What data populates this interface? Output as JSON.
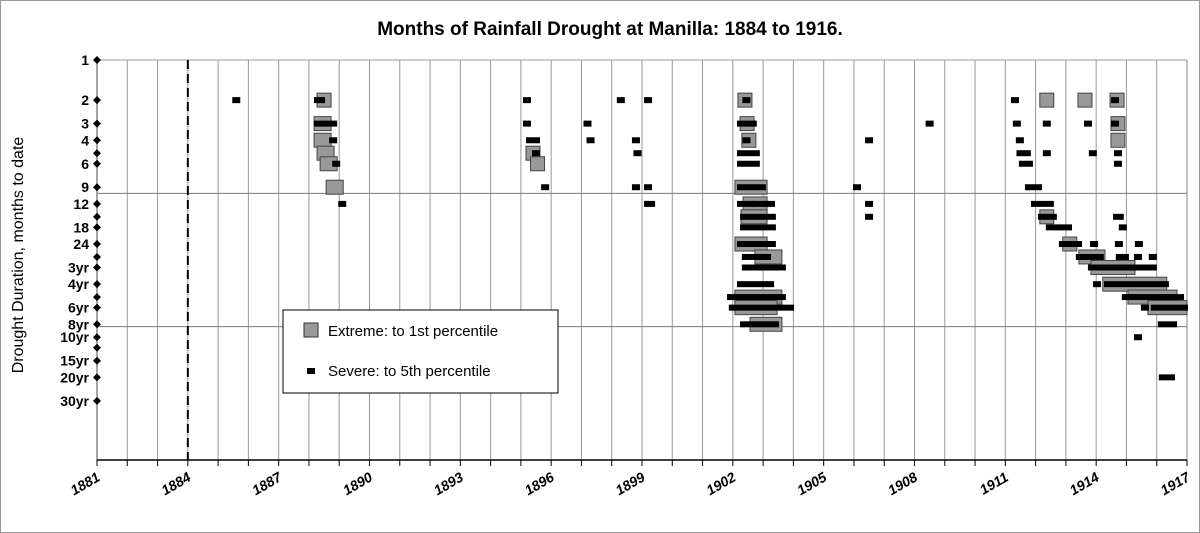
{
  "chart_data": {
    "type": "scatter",
    "title": "Months of Rainfall Drought at Manilla: 1884 to 1916.",
    "ylabel": "Drought Duration, months to date",
    "xlabel": "",
    "xlim": [
      1881,
      1917
    ],
    "ylim": [
      1,
      1000
    ],
    "y_scale": "log",
    "y_reversed": true,
    "grid": {
      "vertical_every_year": true,
      "horizontal_at_months": [
        10,
        100
      ]
    },
    "marker_line_year": 1884,
    "x_ticks": [
      "1881",
      "1884",
      "1887",
      "1890",
      "1893",
      "1896",
      "1899",
      "1902",
      "1905",
      "1908",
      "1911",
      "1914",
      "1917"
    ],
    "y_ticks": [
      {
        "months": 1,
        "label": "1"
      },
      {
        "months": 2,
        "label": "2"
      },
      {
        "months": 3,
        "label": "3"
      },
      {
        "months": 4,
        "label": "4"
      },
      {
        "months": 5,
        "label": ""
      },
      {
        "months": 6,
        "label": "6"
      },
      {
        "months": 9,
        "label": "9"
      },
      {
        "months": 12,
        "label": "12"
      },
      {
        "months": 15,
        "label": ""
      },
      {
        "months": 18,
        "label": "18"
      },
      {
        "months": 24,
        "label": "24"
      },
      {
        "months": 30,
        "label": ""
      },
      {
        "months": 36,
        "label": "3yr"
      },
      {
        "months": 48,
        "label": "4yr"
      },
      {
        "months": 60,
        "label": ""
      },
      {
        "months": 72,
        "label": "6yr"
      },
      {
        "months": 96,
        "label": "8yr"
      },
      {
        "months": 120,
        "label": "10yr"
      },
      {
        "months": 144,
        "label": ""
      },
      {
        "months": 180,
        "label": "15yr"
      },
      {
        "months": 240,
        "label": "20yr"
      },
      {
        "months": 360,
        "label": "30yr"
      }
    ],
    "legend": {
      "placement": "lower-left-center",
      "extreme_label": "Extreme: to 1st percentile",
      "severe_label": "Severe: to 5th percentile"
    },
    "colors": {
      "extreme": "#999999",
      "severe": "#000000"
    },
    "series": [
      {
        "name": "Extreme: to 1st percentile",
        "runs": [
          [
            1888.5,
            1888.5,
            2
          ],
          [
            1888.4,
            1888.5,
            3
          ],
          [
            1888.4,
            1888.5,
            4
          ],
          [
            1888.5,
            1888.6,
            5
          ],
          [
            1888.6,
            1888.7,
            6
          ],
          [
            1888.8,
            1888.9,
            9
          ],
          [
            1895.4,
            1895.4,
            5
          ],
          [
            1895.55,
            1895.55,
            6
          ],
          [
            1902.4,
            1902.4,
            2
          ],
          [
            1902.47,
            1902.47,
            3
          ],
          [
            1902.53,
            1902.53,
            4
          ],
          [
            1902.3,
            1902.9,
            9
          ],
          [
            1902.57,
            1902.9,
            12
          ],
          [
            1902.5,
            1902.9,
            15
          ],
          [
            1902.3,
            1902.9,
            24
          ],
          [
            1902.96,
            1903.39,
            30
          ],
          [
            1902.3,
            1903.39,
            60
          ],
          [
            1902.3,
            1903.23,
            72
          ],
          [
            1902.8,
            1903.39,
            96
          ],
          [
            1912.37,
            1912.37,
            2
          ],
          [
            1913.63,
            1913.63,
            2
          ],
          [
            1914.69,
            1914.69,
            2
          ],
          [
            1914.72,
            1914.72,
            3
          ],
          [
            1914.72,
            1914.72,
            4
          ],
          [
            1912.37,
            1912.37,
            15
          ],
          [
            1913.13,
            1913.13,
            24
          ],
          [
            1913.66,
            1914.06,
            30
          ],
          [
            1914.06,
            1915.05,
            36
          ],
          [
            1914.45,
            1916.1,
            48
          ],
          [
            1915.28,
            1916.44,
            60
          ],
          [
            1915.94,
            1916.77,
            72
          ]
        ]
      },
      {
        "name": "Severe: to 5th percentile",
        "runs": [
          [
            1885.6,
            1885.6,
            2
          ],
          [
            1888.3,
            1888.4,
            2
          ],
          [
            1888.3,
            1888.8,
            3
          ],
          [
            1888.8,
            1888.8,
            4
          ],
          [
            1888.9,
            1888.9,
            6
          ],
          [
            1889.1,
            1889.1,
            12
          ],
          [
            1895.2,
            1895.2,
            2
          ],
          [
            1895.2,
            1895.2,
            3
          ],
          [
            1895.3,
            1895.5,
            4
          ],
          [
            1895.5,
            1895.5,
            5
          ],
          [
            1895.8,
            1895.8,
            9
          ],
          [
            1897.2,
            1897.2,
            3
          ],
          [
            1897.3,
            1897.3,
            4
          ],
          [
            1898.3,
            1898.3,
            2
          ],
          [
            1898.8,
            1898.8,
            4
          ],
          [
            1898.85,
            1898.85,
            5
          ],
          [
            1898.8,
            1898.8,
            9
          ],
          [
            1899.2,
            1899.2,
            2
          ],
          [
            1899.2,
            1899.2,
            9
          ],
          [
            1899.2,
            1899.3,
            12
          ],
          [
            1902.45,
            1902.45,
            2
          ],
          [
            1902.27,
            1902.66,
            3
          ],
          [
            1902.45,
            1902.45,
            4
          ],
          [
            1902.27,
            1902.76,
            5
          ],
          [
            1902.27,
            1902.76,
            6
          ],
          [
            1902.27,
            1902.96,
            9
          ],
          [
            1902.27,
            1902.6,
            12
          ],
          [
            1902.75,
            1902.96,
            12
          ],
          [
            1903.15,
            1903.26,
            12
          ],
          [
            1902.37,
            1903.29,
            15
          ],
          [
            1902.37,
            1903.29,
            18
          ],
          [
            1902.27,
            1903.29,
            24
          ],
          [
            1902.43,
            1903.13,
            30
          ],
          [
            1902.43,
            1903.62,
            36
          ],
          [
            1902.27,
            1903.23,
            48
          ],
          [
            1901.94,
            1903.62,
            60
          ],
          [
            1902.0,
            1903.89,
            72
          ],
          [
            1902.37,
            1903.39,
            96
          ],
          [
            1906.1,
            1906.1,
            9
          ],
          [
            1906.5,
            1906.5,
            4
          ],
          [
            1906.5,
            1906.5,
            12
          ],
          [
            1906.5,
            1906.5,
            15
          ],
          [
            1908.5,
            1908.5,
            3
          ],
          [
            1911.32,
            1911.32,
            2
          ],
          [
            1911.38,
            1911.38,
            3
          ],
          [
            1911.48,
            1911.48,
            4
          ],
          [
            1911.5,
            1911.71,
            5
          ],
          [
            1911.58,
            1911.78,
            6
          ],
          [
            1911.78,
            1912.08,
            9
          ],
          [
            1911.98,
            1912.47,
            12
          ],
          [
            1912.21,
            1912.57,
            15
          ],
          [
            1912.47,
            1913.07,
            18
          ],
          [
            1912.9,
            1913.4,
            24
          ],
          [
            1913.46,
            1914.12,
            30
          ],
          [
            1913.86,
            1915.71,
            36
          ],
          [
            1914.03,
            1914.03,
            48
          ],
          [
            1914.39,
            1916.27,
            48
          ],
          [
            1914.98,
            1916.77,
            60
          ],
          [
            1915.61,
            1915.61,
            72
          ],
          [
            1915.94,
            1916.9,
            72
          ],
          [
            1916.17,
            1916.54,
            96
          ],
          [
            1915.38,
            1915.38,
            120
          ],
          [
            1916.2,
            1916.47,
            240
          ],
          [
            1912.37,
            1912.37,
            3
          ],
          [
            1912.37,
            1912.37,
            5
          ],
          [
            1913.73,
            1913.73,
            3
          ],
          [
            1913.89,
            1913.89,
            5
          ],
          [
            1914.62,
            1914.62,
            2
          ],
          [
            1914.62,
            1914.62,
            3
          ],
          [
            1914.72,
            1914.72,
            5
          ],
          [
            1914.72,
            1914.72,
            6
          ],
          [
            1914.69,
            1914.78,
            15
          ],
          [
            1914.88,
            1914.88,
            18
          ],
          [
            1913.93,
            1913.93,
            24
          ],
          [
            1914.75,
            1914.75,
            24
          ],
          [
            1915.41,
            1915.41,
            24
          ],
          [
            1914.78,
            1914.95,
            30
          ],
          [
            1915.38,
            1915.38,
            30
          ],
          [
            1915.87,
            1915.87,
            30
          ],
          [
            1915.87,
            1915.87,
            36
          ]
        ]
      }
    ]
  }
}
